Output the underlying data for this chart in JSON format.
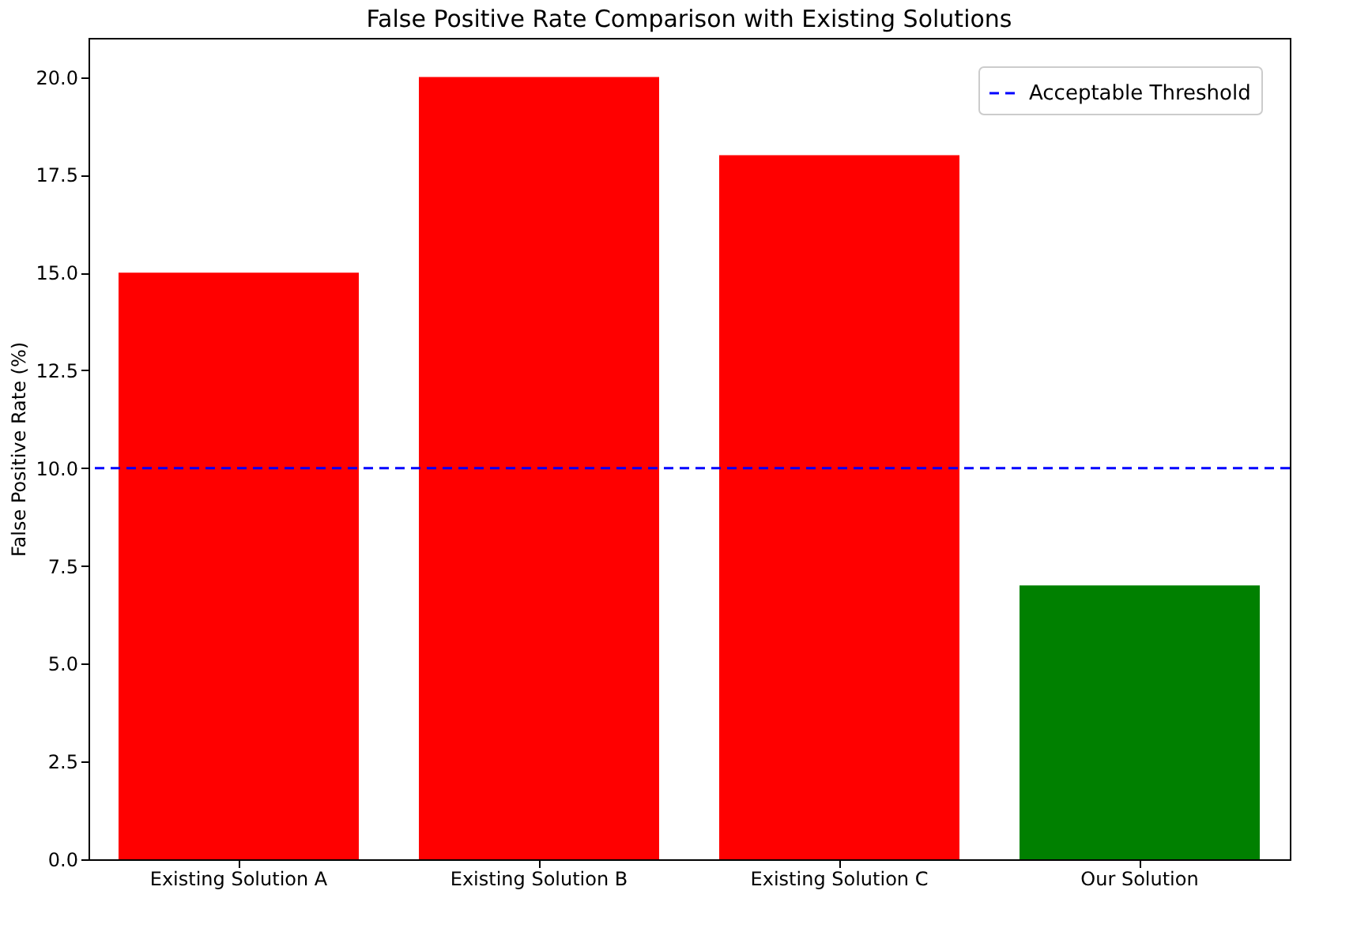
{
  "chart_data": {
    "type": "bar",
    "title": "False Positive Rate Comparison with Existing Solutions",
    "ylabel": "False Positive Rate (%)",
    "categories": [
      "Existing Solution A",
      "Existing Solution B",
      "Existing Solution C",
      "Our Solution"
    ],
    "values": [
      15,
      20,
      18,
      7
    ],
    "colors": [
      "#ff0000",
      "#ff0000",
      "#ff0000",
      "#008000"
    ],
    "ylim": [
      0,
      21
    ],
    "yticks": [
      {
        "value": 0,
        "label": "0.0"
      },
      {
        "value": 2.5,
        "label": "2.5"
      },
      {
        "value": 5,
        "label": "5.0"
      },
      {
        "value": 7.5,
        "label": "7.5"
      },
      {
        "value": 10,
        "label": "10.0"
      },
      {
        "value": 12.5,
        "label": "12.5"
      },
      {
        "value": 15,
        "label": "15.0"
      },
      {
        "value": 17.5,
        "label": "17.5"
      },
      {
        "value": 20,
        "label": "20.0"
      }
    ],
    "ref_lines": [
      {
        "axis": "y",
        "value": 10,
        "label": "Acceptable Threshold",
        "color": "#0000ff",
        "line_style": "dashed"
      }
    ],
    "legend": "top right",
    "grid": false
  }
}
